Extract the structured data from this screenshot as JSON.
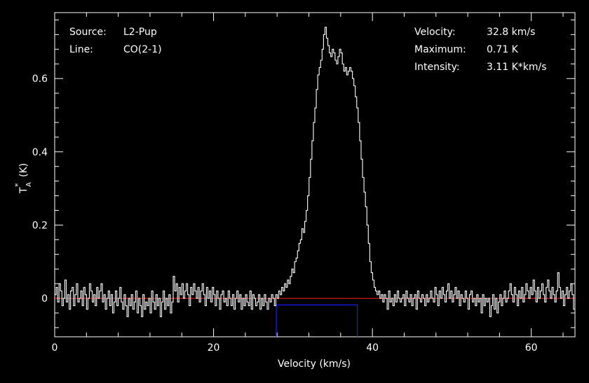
{
  "chart_data": {
    "type": "line",
    "title": "",
    "xlabel": "Velocity (km/s)",
    "ylabel": "T*A (K)",
    "ylabel_main": "T",
    "ylabel_sup": "*",
    "ylabel_sub": "A",
    "ylabel_unit": "(K)",
    "xlim": [
      0,
      65.5
    ],
    "ylim": [
      -0.105,
      0.78
    ],
    "x_ticks": [
      0,
      20,
      40,
      60
    ],
    "x_tick_labels": [
      "0",
      "20",
      "40",
      "60"
    ],
    "y_ticks": [
      0,
      0.2,
      0.4,
      0.6
    ],
    "y_tick_labels": [
      "0",
      "0.2",
      "0.4",
      "0.6"
    ],
    "x_minor_step": 4,
    "y_minor_step": 0.04,
    "grid": false,
    "colors": {
      "background": "#000000",
      "axes": "#ffffff",
      "spectrum": "#ffffff",
      "baseline": "#ff2020",
      "window": "#1a1aff",
      "text": "#ffffff"
    },
    "baseline_value": 0,
    "integration_window": {
      "x_start": 27.9,
      "x_end": 38.1,
      "level": -0.018
    },
    "spectrum": {
      "x_start": 0,
      "x_end": 65.5,
      "y": [
        0.01,
        0.03,
        -0.01,
        0.04,
        0.02,
        -0.02,
        0.0,
        0.05,
        -0.01,
        0.01,
        -0.03,
        0.02,
        0.03,
        -0.02,
        0.01,
        0.04,
        -0.01,
        0.0,
        0.02,
        -0.02,
        0.03,
        0.01,
        -0.03,
        0.0,
        0.04,
        0.02,
        -0.01,
        0.01,
        -0.02,
        0.03,
        0.0,
        0.02,
        0.04,
        -0.01,
        0.01,
        -0.03,
        0.0,
        0.02,
        -0.02,
        0.01,
        -0.04,
        -0.01,
        0.02,
        -0.02,
        0.0,
        0.03,
        -0.01,
        -0.03,
        0.01,
        -0.02,
        -0.05,
        0.0,
        -0.02,
        0.01,
        -0.03,
        -0.01,
        0.02,
        -0.04,
        0.0,
        -0.02,
        -0.05,
        0.01,
        -0.03,
        -0.01,
        -0.02,
        0.0,
        -0.04,
        0.02,
        -0.01,
        -0.03,
        0.01,
        -0.02,
        0.0,
        -0.05,
        -0.01,
        0.02,
        -0.03,
        0.0,
        -0.02,
        0.01,
        -0.04,
        -0.01,
        0.06,
        0.02,
        0.04,
        -0.01,
        0.03,
        0.01,
        0.04,
        0.0,
        0.02,
        0.04,
        0.01,
        -0.02,
        0.03,
        0.01,
        0.04,
        0.02,
        0.0,
        0.03,
        -0.01,
        0.02,
        0.04,
        0.01,
        -0.02,
        0.03,
        0.0,
        0.02,
        -0.01,
        0.03,
        0.01,
        -0.02,
        0.02,
        0.0,
        -0.03,
        0.01,
        0.02,
        -0.01,
        0.0,
        -0.02,
        0.02,
        0.0,
        -0.02,
        0.01,
        -0.03,
        0.0,
        0.02,
        -0.01,
        0.01,
        -0.03,
        0.0,
        -0.02,
        0.01,
        -0.01,
        -0.02,
        0.02,
        -0.03,
        0.01,
        0.0,
        -0.02,
        -0.01,
        0.01,
        -0.03,
        0.0,
        -0.02,
        0.01,
        -0.01,
        -0.03,
        0.0,
        -0.01,
        0.01,
        0.0,
        -0.02,
        0.01,
        0.0,
        0.02,
        0.01,
        0.03,
        0.02,
        0.04,
        0.03,
        0.05,
        0.04,
        0.06,
        0.08,
        0.07,
        0.1,
        0.11,
        0.13,
        0.15,
        0.16,
        0.19,
        0.18,
        0.21,
        0.24,
        0.28,
        0.33,
        0.38,
        0.43,
        0.48,
        0.52,
        0.57,
        0.61,
        0.63,
        0.65,
        0.68,
        0.72,
        0.74,
        0.71,
        0.69,
        0.67,
        0.66,
        0.68,
        0.67,
        0.65,
        0.64,
        0.66,
        0.68,
        0.67,
        0.64,
        0.62,
        0.63,
        0.61,
        0.62,
        0.63,
        0.62,
        0.6,
        0.58,
        0.55,
        0.52,
        0.48,
        0.43,
        0.38,
        0.33,
        0.29,
        0.25,
        0.2,
        0.15,
        0.1,
        0.07,
        0.05,
        0.03,
        0.02,
        0.01,
        0.02,
        0.0,
        0.01,
        -0.01,
        0.01,
        0.0,
        -0.03,
        0.02,
        -0.01,
        0.0,
        -0.02,
        0.01,
        -0.01,
        0.02,
        0.0,
        -0.01,
        0.0,
        0.01,
        -0.02,
        0.02,
        0.0,
        -0.01,
        0.01,
        -0.02,
        0.0,
        0.01,
        -0.03,
        0.02,
        0.0,
        -0.01,
        0.01,
        0.0,
        -0.02,
        0.01,
        -0.01,
        0.0,
        0.02,
        0.0,
        -0.01,
        0.03,
        0.01,
        -0.02,
        0.02,
        0.0,
        0.03,
        0.01,
        -0.01,
        0.02,
        0.04,
        0.0,
        0.02,
        -0.01,
        0.01,
        0.03,
        0.0,
        0.02,
        -0.02,
        0.01,
        0.0,
        -0.01,
        0.02,
        0.0,
        -0.03,
        0.01,
        0.02,
        -0.01,
        0.0,
        -0.02,
        0.01,
        -0.01,
        0.0,
        -0.04,
        0.01,
        -0.02,
        0.0,
        -0.01,
        0.0,
        -0.05,
        -0.02,
        0.01,
        -0.03,
        0.0,
        -0.04,
        -0.01,
        0.01,
        -0.02,
        0.0,
        0.02,
        -0.01,
        0.0,
        0.02,
        0.04,
        0.01,
        -0.01,
        0.03,
        0.01,
        -0.02,
        0.02,
        0.0,
        0.03,
        -0.01,
        0.01,
        0.04,
        0.02,
        0.0,
        0.03,
        0.01,
        0.05,
        0.02,
        -0.01,
        0.03,
        0.0,
        0.02,
        0.04,
        0.01,
        -0.01,
        0.03,
        0.05,
        0.02,
        0.0,
        0.03,
        0.01,
        -0.01,
        0.02,
        0.07,
        0.03,
        0.0,
        0.02,
        -0.02,
        0.01,
        0.03,
        0.0,
        0.02,
        0.04,
        0.01,
        -0.03
      ]
    }
  },
  "info": {
    "left": [
      {
        "label": "Source:",
        "value": "L2-Pup"
      },
      {
        "label": "Line:",
        "value": "CO(2-1)"
      }
    ],
    "right": [
      {
        "label": "Velocity:",
        "value": "32.8 km/s"
      },
      {
        "label": "Maximum:",
        "value": "0.71 K"
      },
      {
        "label": "Intensity:",
        "value": "3.11 K*km/s"
      }
    ]
  }
}
